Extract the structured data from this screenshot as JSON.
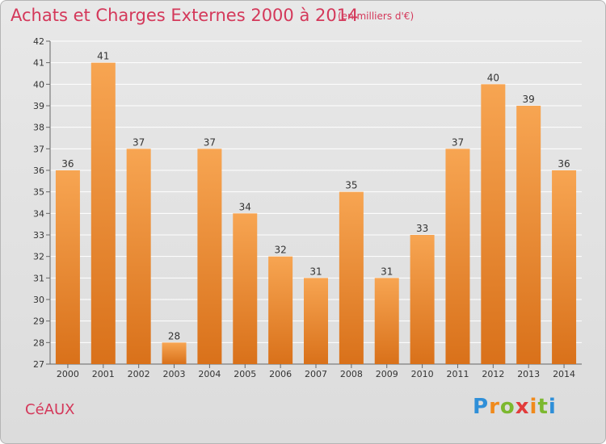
{
  "header": {
    "title": "Achats et Charges Externes 2000 à 2014",
    "subtitle": "(en milliers d'€)"
  },
  "footer": {
    "place": "CéAUX",
    "logo_text": "Proxiti"
  },
  "colors": {
    "title": "#d4385a",
    "bar_light": "#f7a552",
    "bar_dark": "#d9711a",
    "grid": "#ffffff",
    "plot_bg": "#dcdcdc"
  },
  "chart_data": {
    "type": "bar",
    "title": "Achats et Charges Externes 2000 à 2014",
    "subtitle": "(en milliers d'€)",
    "xlabel": "",
    "ylabel": "",
    "categories": [
      "2000",
      "2001",
      "2002",
      "2003",
      "2004",
      "2005",
      "2006",
      "2007",
      "2008",
      "2009",
      "2010",
      "2011",
      "2012",
      "2013",
      "2014"
    ],
    "values": [
      36,
      41,
      37,
      28,
      37,
      34,
      32,
      31,
      35,
      31,
      33,
      37,
      40,
      39,
      36
    ],
    "ylim": [
      27,
      42
    ],
    "yticks": [
      27,
      28,
      29,
      30,
      31,
      32,
      33,
      34,
      35,
      36,
      37,
      38,
      39,
      40,
      41,
      42
    ],
    "grid": true,
    "legend": "none"
  }
}
